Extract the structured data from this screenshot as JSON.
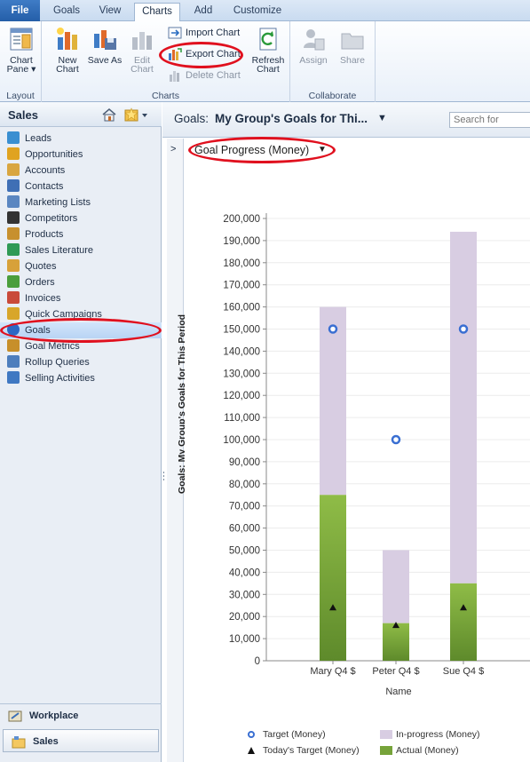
{
  "ribbon_tabs": [
    {
      "label": "File"
    },
    {
      "label": "Goals"
    },
    {
      "label": "View"
    },
    {
      "label": "Charts"
    },
    {
      "label": "Add"
    },
    {
      "label": "Customize"
    }
  ],
  "ribbon": {
    "layout_group": {
      "label": "Layout",
      "chart_pane": "Chart Pane ▾"
    },
    "charts_group": {
      "label": "Charts",
      "new_chart": "New Chart",
      "save_as": "Save As",
      "edit_chart": "Edit Chart",
      "import_chart": "Import Chart",
      "export_chart": "Export Chart",
      "delete_chart": "Delete Chart",
      "refresh_chart": "Refresh Chart"
    },
    "collaborate_group": {
      "label": "Collaborate",
      "assign": "Assign",
      "share": "Share"
    }
  },
  "nav": {
    "title": "Sales",
    "items": [
      {
        "label": "Leads",
        "icon": "leads-icon",
        "color": "#3a8fd1"
      },
      {
        "label": "Opportunities",
        "icon": "opportunities-icon",
        "color": "#e0a320"
      },
      {
        "label": "Accounts",
        "icon": "accounts-icon",
        "color": "#d9a640"
      },
      {
        "label": "Contacts",
        "icon": "contacts-icon",
        "color": "#3f6fb5"
      },
      {
        "label": "Marketing Lists",
        "icon": "marketing-lists-icon",
        "color": "#5a86c1"
      },
      {
        "label": "Competitors",
        "icon": "competitors-icon",
        "color": "#333333"
      },
      {
        "label": "Products",
        "icon": "products-icon",
        "color": "#c7902e"
      },
      {
        "label": "Sales Literature",
        "icon": "sales-literature-icon",
        "color": "#2f9a55"
      },
      {
        "label": "Quotes",
        "icon": "quotes-icon",
        "color": "#d7a13a"
      },
      {
        "label": "Orders",
        "icon": "orders-icon",
        "color": "#4a9e3c"
      },
      {
        "label": "Invoices",
        "icon": "invoices-icon",
        "color": "#c94a3a"
      },
      {
        "label": "Quick Campaigns",
        "icon": "quick-campaigns-icon",
        "color": "#d8a62a"
      },
      {
        "label": "Goals",
        "icon": "goals-icon",
        "color": "#2c68c4"
      },
      {
        "label": "Goal Metrics",
        "icon": "goal-metrics-icon",
        "color": "#c78f2a"
      },
      {
        "label": "Rollup Queries",
        "icon": "rollup-queries-icon",
        "color": "#4d7ebd"
      },
      {
        "label": "Selling Activities",
        "icon": "selling-activities-icon",
        "color": "#3f78c2"
      }
    ],
    "workplace": "Workplace",
    "sales": "Sales"
  },
  "main": {
    "view_prefix": "Goals:",
    "view_name": "My Group's Goals for Thi...",
    "search_placeholder": "Search for",
    "vertical_title": "Goals: My Group's Goals for This Period",
    "chart_selector": "Goal Progress (Money)"
  },
  "chart_data": {
    "type": "bar",
    "categories": [
      "Mary Q4 $",
      "Peter Q4 $",
      "Sue Q4 $"
    ],
    "xlabel": "Name",
    "ylabel": "",
    "ylim": [
      0,
      200000
    ],
    "yticks": [
      "0",
      "10,000",
      "20,000",
      "30,000",
      "40,000",
      "50,000",
      "60,000",
      "70,000",
      "80,000",
      "90,000",
      "100,000",
      "110,000",
      "120,000",
      "130,000",
      "140,000",
      "150,000",
      "160,000",
      "170,000",
      "180,000",
      "190,000",
      "200,000"
    ],
    "grid": true,
    "stacked": true,
    "series": [
      {
        "name": "Actual (Money)",
        "kind": "bar",
        "values": [
          75000,
          17000,
          35000
        ],
        "color": "#76a33a"
      },
      {
        "name": "In-progress (Money)",
        "kind": "bar",
        "values": [
          85000,
          33000,
          159000
        ],
        "color": "#d8cde2"
      },
      {
        "name": "Target (Money)",
        "kind": "marker-circle",
        "values": [
          150000,
          100000,
          150000
        ],
        "color": "#3a6fd2"
      },
      {
        "name": "Today's Target (Money)",
        "kind": "marker-triangle",
        "values": [
          24000,
          16000,
          24000
        ],
        "color": "#111111"
      }
    ],
    "legend": [
      {
        "label": "Target (Money)"
      },
      {
        "label": "In-progress (Money)"
      },
      {
        "label": "Today's Target (Money)"
      },
      {
        "label": "Actual (Money)"
      }
    ],
    "legend_position": "bottom"
  },
  "colors": {
    "highlight": "#e0101e",
    "nav_selected": "#c3daf6"
  }
}
